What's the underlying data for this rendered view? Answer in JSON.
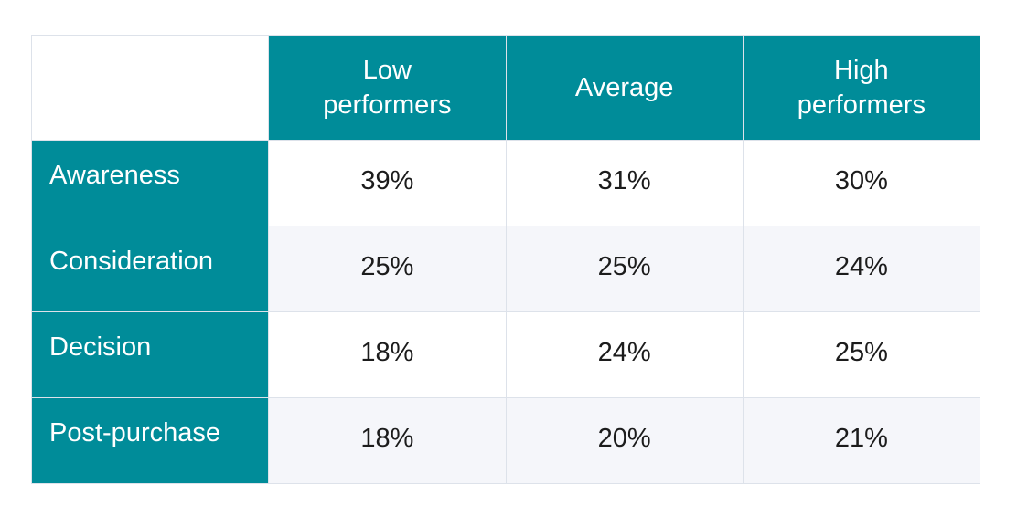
{
  "chart_data": {
    "type": "table",
    "corner_label": "",
    "columns": [
      "Low performers",
      "Average",
      "High performers"
    ],
    "rows": [
      {
        "label": "Awareness",
        "values": [
          "39%",
          "31%",
          "30%"
        ]
      },
      {
        "label": "Consideration",
        "values": [
          "25%",
          "25%",
          "24%"
        ]
      },
      {
        "label": "Decision",
        "values": [
          "18%",
          "24%",
          "25%"
        ]
      },
      {
        "label": "Post-purchase",
        "values": [
          "18%",
          "20%",
          "21%"
        ]
      }
    ]
  },
  "colors": {
    "header_bg": "#008c99",
    "header_text": "#ffffff",
    "row_alt_bg": "#f5f6fa",
    "border": "#dde2ea"
  }
}
